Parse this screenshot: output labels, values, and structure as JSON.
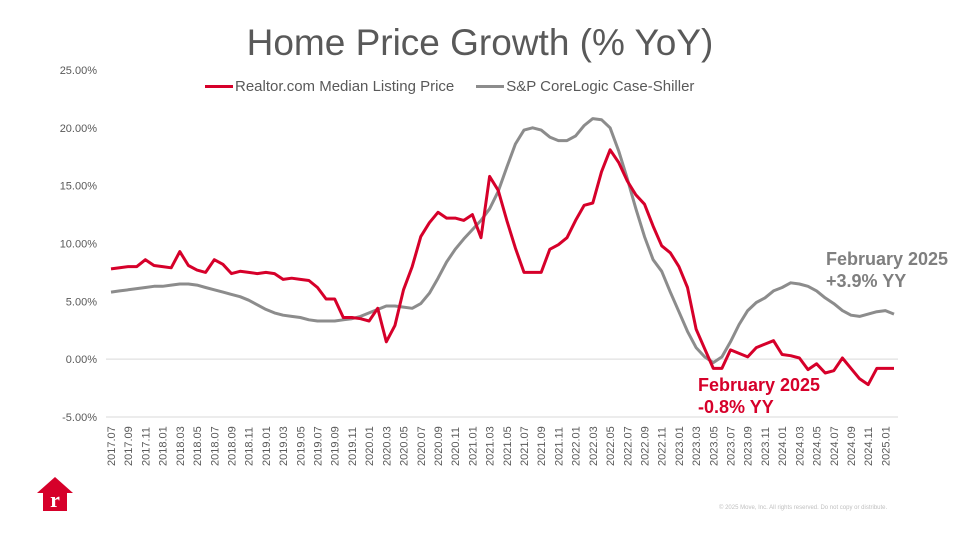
{
  "slide": {
    "copyright": "© 2025 Move, Inc. All rights reserved. Do not copy or distribute.",
    "logo_letter": "r"
  },
  "colors": {
    "realtor": "#d6002a",
    "case_shiller": "#8c8c8c",
    "text": "#595959",
    "grid": "#d9d9d9"
  },
  "annotations": {
    "case_shiller": {
      "line1": "February 2025",
      "line2": "+3.9% YY"
    },
    "realtor": {
      "line1": "February 2025",
      "line2": "-0.8% YY"
    }
  },
  "chart_data": {
    "type": "line",
    "title": "Home Price Growth (% YoY)",
    "xlabel": "",
    "ylabel": "",
    "ylim": [
      -5,
      25
    ],
    "yticks": [
      25,
      20,
      15,
      10,
      5,
      0,
      -5
    ],
    "ytick_labels": [
      "25.00%",
      "20.00%",
      "15.00%",
      "10.00%",
      "5.00%",
      "0.00%",
      "-5.00%"
    ],
    "grid": false,
    "legend_position": "top",
    "x": [
      "2017.07",
      "2017.08",
      "2017.09",
      "2017.10",
      "2017.11",
      "2017.12",
      "2018.01",
      "2018.02",
      "2018.03",
      "2018.04",
      "2018.05",
      "2018.06",
      "2018.07",
      "2018.08",
      "2018.09",
      "2018.10",
      "2018.11",
      "2018.12",
      "2019.01",
      "2019.02",
      "2019.03",
      "2019.04",
      "2019.05",
      "2019.06",
      "2019.07",
      "2019.08",
      "2019.09",
      "2019.10",
      "2019.11",
      "2019.12",
      "2020.01",
      "2020.02",
      "2020.03",
      "2020.04",
      "2020.05",
      "2020.06",
      "2020.07",
      "2020.08",
      "2020.09",
      "2020.10",
      "2020.11",
      "2020.12",
      "2021.01",
      "2021.02",
      "2021.03",
      "2021.04",
      "2021.05",
      "2021.06",
      "2021.07",
      "2021.08",
      "2021.09",
      "2021.10",
      "2021.11",
      "2021.12",
      "2022.01",
      "2022.02",
      "2022.03",
      "2022.04",
      "2022.05",
      "2022.06",
      "2022.07",
      "2022.08",
      "2022.09",
      "2022.10",
      "2022.11",
      "2022.12",
      "2023.01",
      "2023.02",
      "2023.03",
      "2023.04",
      "2023.05",
      "2023.06",
      "2023.07",
      "2023.08",
      "2023.09",
      "2023.10",
      "2023.11",
      "2023.12",
      "2024.01",
      "2024.02",
      "2024.03",
      "2024.04",
      "2024.05",
      "2024.06",
      "2024.07",
      "2024.08",
      "2024.09",
      "2024.10",
      "2024.11",
      "2024.12",
      "2025.01",
      "2025.02"
    ],
    "xtick_labels": [
      "2017.07",
      "2017.09",
      "2017.11",
      "2018.01",
      "2018.03",
      "2018.05",
      "2018.07",
      "2018.09",
      "2018.11",
      "2019.01",
      "2019.03",
      "2019.05",
      "2019.07",
      "2019.09",
      "2019.11",
      "2020.01",
      "2020.03",
      "2020.05",
      "2020.07",
      "2020.09",
      "2020.11",
      "2021.01",
      "2021.03",
      "2021.05",
      "2021.07",
      "2021.09",
      "2021.11",
      "2022.01",
      "2022.03",
      "2022.05",
      "2022.07",
      "2022.09",
      "2022.11",
      "2023.01",
      "2023.03",
      "2023.05",
      "2023.07",
      "2023.09",
      "2023.11",
      "2024.01",
      "2024.03",
      "2024.05",
      "2024.07",
      "2024.09",
      "2024.11",
      "2025.01"
    ],
    "series": [
      {
        "name": "Realtor.com Median Listing Price",
        "color": "#d6002a",
        "values": [
          7.8,
          7.9,
          8.0,
          8.0,
          8.6,
          8.1,
          8.0,
          7.9,
          9.3,
          8.1,
          7.7,
          7.5,
          8.6,
          8.2,
          7.4,
          7.6,
          7.5,
          7.4,
          7.5,
          7.4,
          6.9,
          7.0,
          6.9,
          6.8,
          6.2,
          5.2,
          5.2,
          3.6,
          3.6,
          3.5,
          3.3,
          4.4,
          1.5,
          2.9,
          6.0,
          8.0,
          10.6,
          11.8,
          12.7,
          12.2,
          12.2,
          12.0,
          12.5,
          10.5,
          15.8,
          14.6,
          12.0,
          9.6,
          7.5,
          7.5,
          7.5,
          9.5,
          9.9,
          10.5,
          12.0,
          13.3,
          13.5,
          16.2,
          18.1,
          17.0,
          15.4,
          14.2,
          13.4,
          11.5,
          9.8,
          9.2,
          8.0,
          6.2,
          2.6,
          0.9,
          -0.8,
          -0.8,
          0.8,
          0.5,
          0.2,
          1.0,
          1.3,
          1.6,
          0.4,
          0.3,
          0.1,
          -0.9,
          -0.4,
          -1.2,
          -1.0,
          0.1,
          -0.8,
          -1.7,
          -2.2,
          -0.8,
          -0.8,
          -0.8
        ]
      },
      {
        "name": "S&P CoreLogic Case-Shiller",
        "color": "#8c8c8c",
        "values": [
          5.8,
          5.9,
          6.0,
          6.1,
          6.2,
          6.3,
          6.3,
          6.4,
          6.5,
          6.5,
          6.4,
          6.2,
          6.0,
          5.8,
          5.6,
          5.4,
          5.1,
          4.7,
          4.3,
          4.0,
          3.8,
          3.7,
          3.6,
          3.4,
          3.3,
          3.3,
          3.3,
          3.4,
          3.5,
          3.7,
          4.0,
          4.3,
          4.6,
          4.6,
          4.5,
          4.4,
          4.8,
          5.7,
          7.0,
          8.4,
          9.5,
          10.4,
          11.2,
          12.0,
          13.0,
          14.5,
          16.6,
          18.6,
          19.8,
          20.0,
          19.8,
          19.2,
          18.9,
          18.9,
          19.3,
          20.2,
          20.8,
          20.7,
          20.0,
          18.0,
          15.6,
          13.0,
          10.6,
          8.6,
          7.6,
          5.8,
          4.1,
          2.4,
          1.0,
          0.2,
          -0.3,
          0.2,
          1.5,
          3.0,
          4.2,
          4.9,
          5.3,
          5.9,
          6.2,
          6.6,
          6.5,
          6.3,
          5.9,
          5.3,
          4.8,
          4.2,
          3.8,
          3.7,
          3.9,
          4.1,
          4.2,
          3.9
        ]
      }
    ]
  }
}
